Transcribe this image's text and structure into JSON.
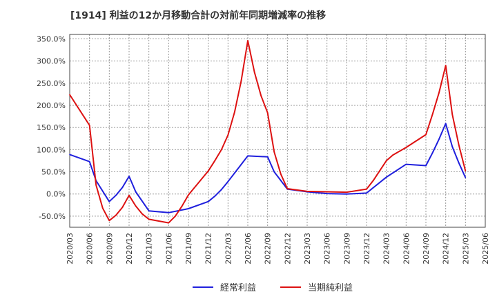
{
  "chart_data": {
    "type": "line",
    "title": "[1914]  利益の12か月移動合計の対前年同期増減率の推移",
    "xlabel": "",
    "ylabel": "",
    "ylim": [
      -75,
      360
    ],
    "x_range": [
      "2020/03",
      "2025/06"
    ],
    "y_ticks": [
      {
        "value": 350,
        "label": "350.0%"
      },
      {
        "value": 300,
        "label": "300.0%"
      },
      {
        "value": 250,
        "label": "250.0%"
      },
      {
        "value": 200,
        "label": "200.0%"
      },
      {
        "value": 150,
        "label": "150.0%"
      },
      {
        "value": 100,
        "label": "100.0%"
      },
      {
        "value": 50,
        "label": "50.0%"
      },
      {
        "value": 0,
        "label": "0.0%"
      },
      {
        "value": -50,
        "label": "-50.0%"
      }
    ],
    "x_ticks": [
      "2020/03",
      "2020/06",
      "2020/09",
      "2020/12",
      "2021/03",
      "2021/06",
      "2021/09",
      "2021/12",
      "2022/03",
      "2022/06",
      "2022/09",
      "2022/12",
      "2023/03",
      "2023/06",
      "2023/09",
      "2023/12",
      "2024/03",
      "2024/06",
      "2024/09",
      "2024/12",
      "2025/03",
      "2025/06"
    ],
    "grid": true,
    "legend_position": "bottom-center",
    "series": [
      {
        "name": "経常利益",
        "color": "#1f1fdd",
        "points": [
          {
            "x": "2020/03",
            "y": 89
          },
          {
            "x": "2020/06",
            "y": 73
          },
          {
            "x": "2020/07",
            "y": 30
          },
          {
            "x": "2020/09",
            "y": -17
          },
          {
            "x": "2020/10",
            "y": -3
          },
          {
            "x": "2020/11",
            "y": 15
          },
          {
            "x": "2020/12",
            "y": 40
          },
          {
            "x": "2021/01",
            "y": 5
          },
          {
            "x": "2021/03",
            "y": -38
          },
          {
            "x": "2021/06",
            "y": -42
          },
          {
            "x": "2021/09",
            "y": -33
          },
          {
            "x": "2021/12",
            "y": -17
          },
          {
            "x": "2022/01",
            "y": -5
          },
          {
            "x": "2022/02",
            "y": 10
          },
          {
            "x": "2022/03",
            "y": 28
          },
          {
            "x": "2022/06",
            "y": 86
          },
          {
            "x": "2022/09",
            "y": 84
          },
          {
            "x": "2022/10",
            "y": 50
          },
          {
            "x": "2022/12",
            "y": 11
          },
          {
            "x": "2023/03",
            "y": 5
          },
          {
            "x": "2023/06",
            "y": 1
          },
          {
            "x": "2023/09",
            "y": 0
          },
          {
            "x": "2023/12",
            "y": 2
          },
          {
            "x": "2024/03",
            "y": 38
          },
          {
            "x": "2024/06",
            "y": 67
          },
          {
            "x": "2024/09",
            "y": 64
          },
          {
            "x": "2024/10",
            "y": 93
          },
          {
            "x": "2024/11",
            "y": 124
          },
          {
            "x": "2024/12",
            "y": 159
          },
          {
            "x": "2025/01",
            "y": 107
          },
          {
            "x": "2025/02",
            "y": 70
          },
          {
            "x": "2025/03",
            "y": 37
          }
        ]
      },
      {
        "name": "当期純利益",
        "color": "#dd1111",
        "points": [
          {
            "x": "2020/03",
            "y": 224
          },
          {
            "x": "2020/06",
            "y": 155
          },
          {
            "x": "2020/07",
            "y": 20
          },
          {
            "x": "2020/08",
            "y": -32
          },
          {
            "x": "2020/09",
            "y": -60
          },
          {
            "x": "2020/10",
            "y": -48
          },
          {
            "x": "2020/11",
            "y": -30
          },
          {
            "x": "2020/12",
            "y": -3
          },
          {
            "x": "2021/01",
            "y": -27
          },
          {
            "x": "2021/02",
            "y": -45
          },
          {
            "x": "2021/03",
            "y": -57
          },
          {
            "x": "2021/06",
            "y": -65
          },
          {
            "x": "2021/07",
            "y": -50
          },
          {
            "x": "2021/08",
            "y": -28
          },
          {
            "x": "2021/09",
            "y": -2
          },
          {
            "x": "2021/12",
            "y": 52
          },
          {
            "x": "2022/01",
            "y": 75
          },
          {
            "x": "2022/02",
            "y": 100
          },
          {
            "x": "2022/03",
            "y": 133
          },
          {
            "x": "2022/04",
            "y": 185
          },
          {
            "x": "2022/05",
            "y": 255
          },
          {
            "x": "2022/06",
            "y": 346
          },
          {
            "x": "2022/07",
            "y": 275
          },
          {
            "x": "2022/08",
            "y": 222
          },
          {
            "x": "2022/09",
            "y": 183
          },
          {
            "x": "2022/10",
            "y": 95
          },
          {
            "x": "2022/11",
            "y": 45
          },
          {
            "x": "2022/12",
            "y": 12
          },
          {
            "x": "2023/03",
            "y": 6
          },
          {
            "x": "2023/06",
            "y": 5
          },
          {
            "x": "2023/09",
            "y": 4
          },
          {
            "x": "2023/12",
            "y": 11
          },
          {
            "x": "2024/01",
            "y": 30
          },
          {
            "x": "2024/03",
            "y": 75
          },
          {
            "x": "2024/04",
            "y": 88
          },
          {
            "x": "2024/06",
            "y": 105
          },
          {
            "x": "2024/09",
            "y": 134
          },
          {
            "x": "2024/10",
            "y": 180
          },
          {
            "x": "2024/11",
            "y": 229
          },
          {
            "x": "2024/12",
            "y": 290
          },
          {
            "x": "2025/01",
            "y": 180
          },
          {
            "x": "2025/02",
            "y": 110
          },
          {
            "x": "2025/03",
            "y": 52
          }
        ]
      }
    ]
  }
}
